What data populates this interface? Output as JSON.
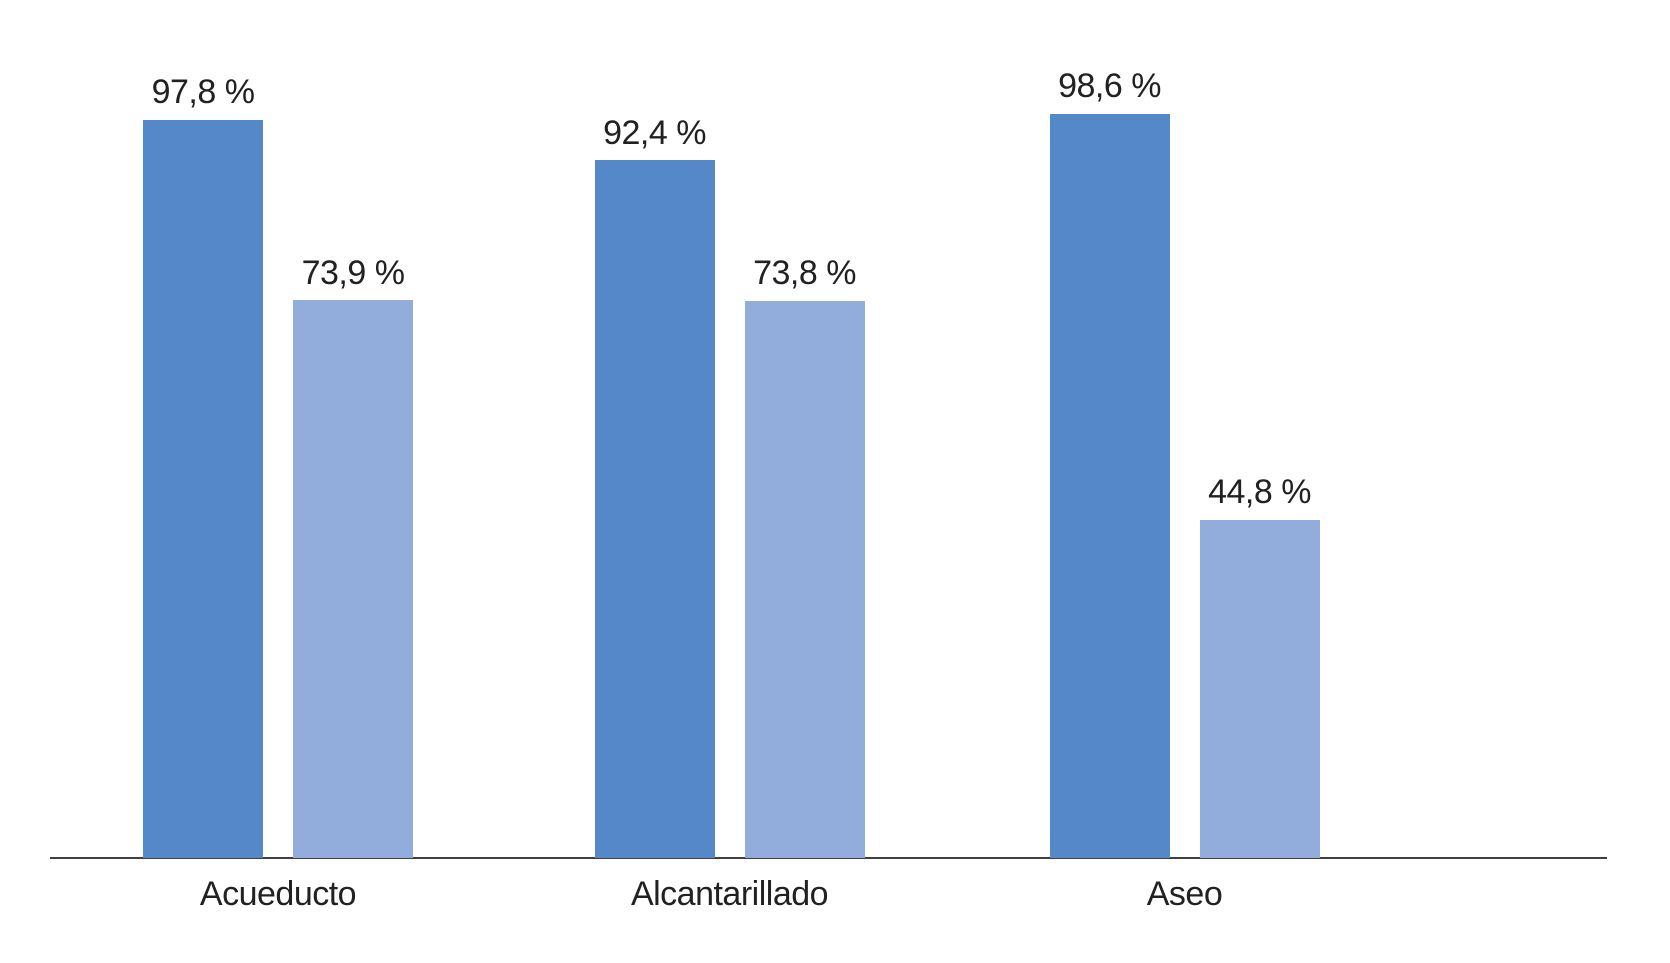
{
  "chart_data": {
    "type": "bar",
    "categories": [
      "Acueducto",
      "Alcantarillado",
      "Aseo"
    ],
    "series": [
      {
        "name": "dark-blue",
        "color": "#5588C8",
        "values": [
          97.8,
          92.4,
          98.6
        ],
        "labels": [
          "97,8 %",
          "92,4 %",
          "98,6 %"
        ]
      },
      {
        "name": "light-blue",
        "color": "#92ADDC",
        "values": [
          73.9,
          73.8,
          44.8
        ],
        "labels": [
          "73,9 %",
          "73,8 %",
          "44,8 %"
        ]
      }
    ],
    "ylim": [
      0,
      100
    ],
    "grid": false,
    "legend": "none",
    "axis_line_color": "#404040",
    "label_text_color": "#212121"
  }
}
